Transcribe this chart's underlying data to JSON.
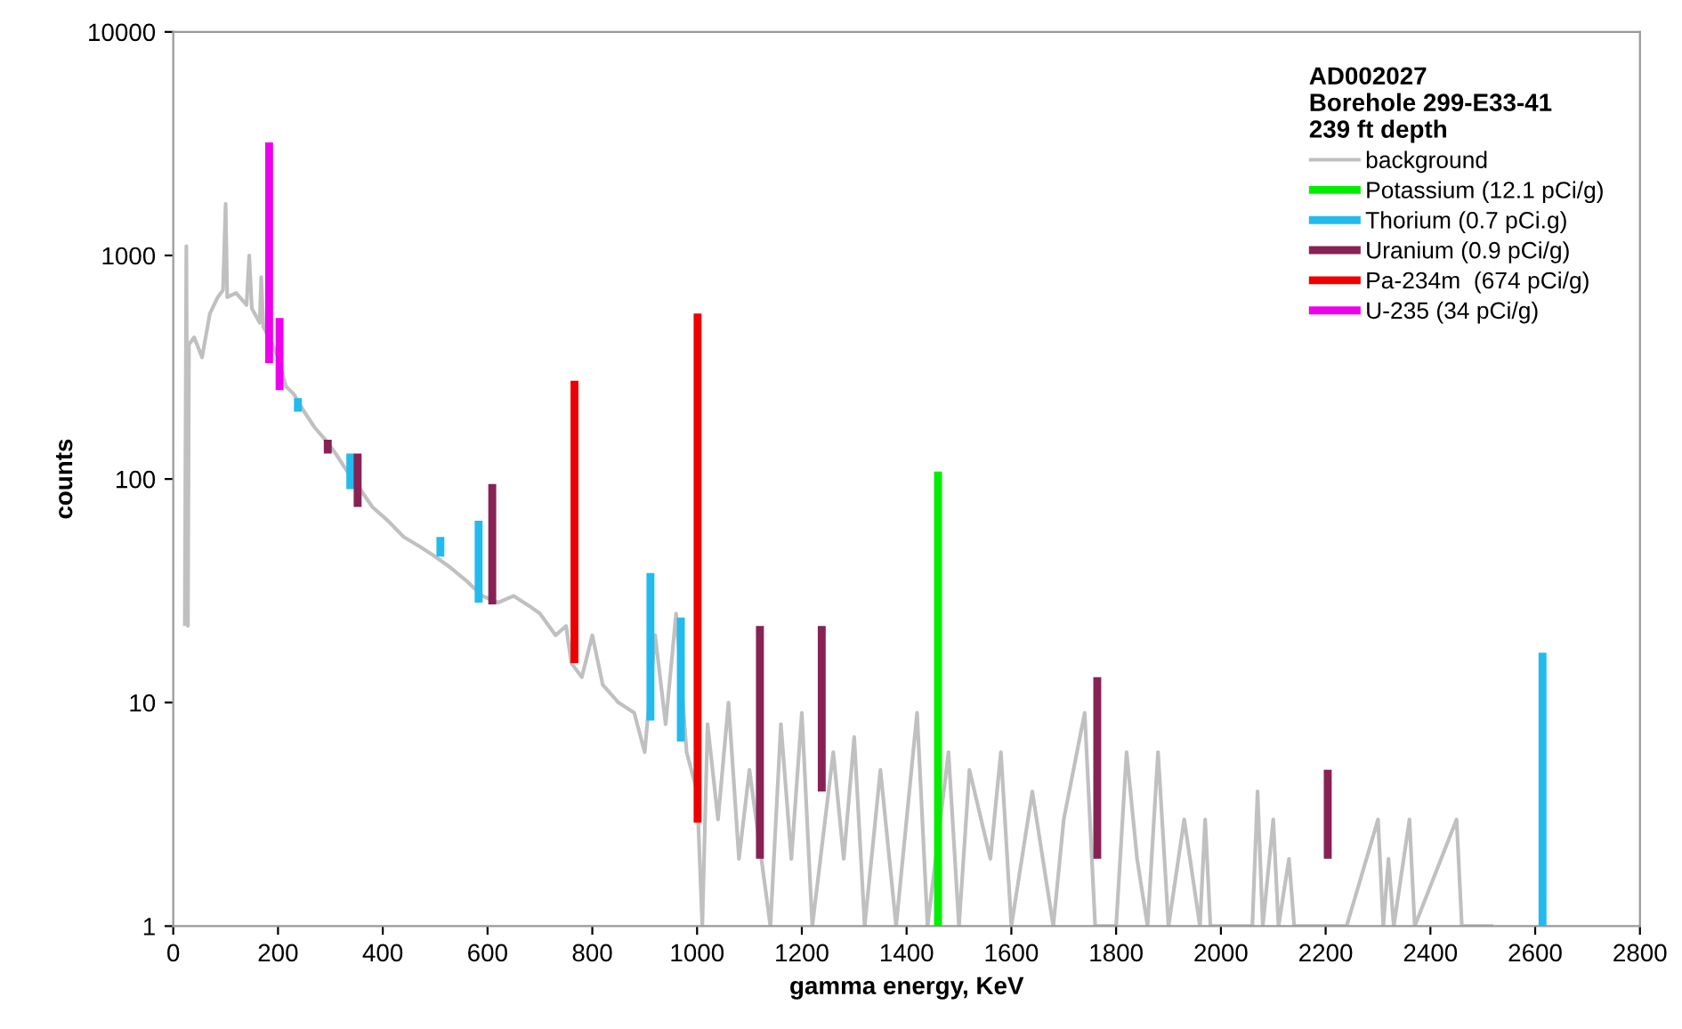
{
  "chart_data": {
    "type": "line",
    "xlabel": "gamma energy, KeV",
    "ylabel": "counts",
    "legend_title": "AD002027\nBorehole 299-E33-41\n239 ft depth",
    "legend": "top right",
    "grid": false,
    "log": "y",
    "marker": "none",
    "line_style": "solid",
    "xlim": [
      0,
      2800
    ],
    "xticks": [
      0,
      200,
      400,
      600,
      800,
      1000,
      1200,
      1400,
      1600,
      1800,
      2000,
      2200,
      2400,
      2600,
      2800
    ],
    "ylim": [
      1,
      10000
    ],
    "yticks": [
      1,
      10,
      100,
      1000,
      10000
    ],
    "series": [
      {
        "name": "background",
        "color": "#c0c0c0",
        "x": [
          22,
          25,
          28,
          30,
          40,
          55,
          70,
          85,
          95,
          100,
          103,
          120,
          140,
          145,
          150,
          165,
          168,
          172,
          185,
          200,
          215,
          230,
          250,
          270,
          290,
          310,
          330,
          350,
          380,
          410,
          440,
          470,
          500,
          530,
          560,
          590,
          620,
          650,
          680,
          700,
          730,
          750,
          760,
          780,
          800,
          820,
          850,
          880,
          900,
          920,
          940,
          960,
          980,
          1000,
          1010,
          1020,
          1040,
          1060,
          1080,
          1100,
          1140,
          1160,
          1180,
          1200,
          1220,
          1260,
          1280,
          1300,
          1320,
          1350,
          1380,
          1420,
          1440,
          1480,
          1500,
          1520,
          1560,
          1580,
          1600,
          1640,
          1680,
          1700,
          1740,
          1760,
          1800,
          1820,
          1840,
          1860,
          1880,
          1900,
          1930,
          1960,
          1970,
          1980,
          2060,
          2070,
          2080,
          2100,
          2110,
          2130,
          2140,
          2240,
          2300,
          2310,
          2320,
          2330,
          2360,
          2370,
          2450,
          2460,
          2520
        ],
        "values": [
          22,
          1100,
          22,
          400,
          430,
          350,
          550,
          650,
          700,
          1700,
          650,
          680,
          600,
          1000,
          580,
          500,
          800,
          480,
          420,
          350,
          260,
          240,
          200,
          170,
          150,
          130,
          110,
          95,
          75,
          65,
          55,
          50,
          45,
          40,
          35,
          30,
          28,
          30,
          27,
          25,
          20,
          22,
          15,
          13,
          20,
          12,
          10,
          9,
          6,
          20,
          8,
          25,
          6,
          4,
          1,
          8,
          3,
          10,
          2,
          5,
          1,
          8,
          2,
          9,
          1,
          6,
          2,
          7,
          1,
          5,
          1,
          9,
          1,
          6,
          1,
          5,
          2,
          6,
          1,
          4,
          1,
          3,
          9,
          1,
          1,
          6,
          2,
          1,
          6,
          1,
          3,
          1,
          3,
          1,
          1,
          4,
          1,
          3,
          1,
          2,
          1,
          1,
          3,
          1,
          2,
          1,
          3,
          1,
          3,
          1,
          1
        ]
      },
      {
        "name": "Potassium (12.1 pCi/g)",
        "color": "#00ee00",
        "x": [
          1460,
          1460
        ],
        "values": [
          1,
          108
        ]
      },
      {
        "name": "Thorium (0.7 pCi.g)",
        "color": "#22bbee",
        "x": [
          238,
          238,
          null,
          338,
          338,
          null,
          510,
          510,
          null,
          583,
          583,
          null,
          911,
          911,
          null,
          969,
          969,
          null,
          2614,
          2614
        ],
        "values": [
          200,
          230,
          null,
          90,
          130,
          null,
          45,
          55,
          null,
          28,
          65,
          null,
          8.3,
          38,
          null,
          6.7,
          24,
          null,
          1,
          16.7
        ]
      },
      {
        "name": "Uranium (0.9 pCi/g)",
        "color": "#882255",
        "x": [
          295,
          295,
          null,
          352,
          352,
          null,
          609,
          609,
          null,
          1120,
          1120,
          null,
          1238,
          1238,
          null,
          1764,
          1764,
          null,
          2204,
          2204
        ],
        "values": [
          130,
          150,
          null,
          75,
          130,
          null,
          27.5,
          95,
          null,
          2,
          22,
          null,
          4,
          22,
          null,
          2,
          13,
          null,
          2,
          5
        ]
      },
      {
        "name": "Pa-234m  (674 pCi/g)",
        "color": "#ee0000",
        "x": [
          766,
          766,
          null,
          1001,
          1001
        ],
        "values": [
          15,
          275,
          null,
          2.9,
          550
        ]
      },
      {
        "name": "U-235 (34 pCi/g)",
        "color": "#ee00ee",
        "x": [
          183,
          183,
          null,
          203,
          203
        ],
        "values": [
          330,
          3200,
          null,
          250,
          525
        ]
      }
    ]
  }
}
